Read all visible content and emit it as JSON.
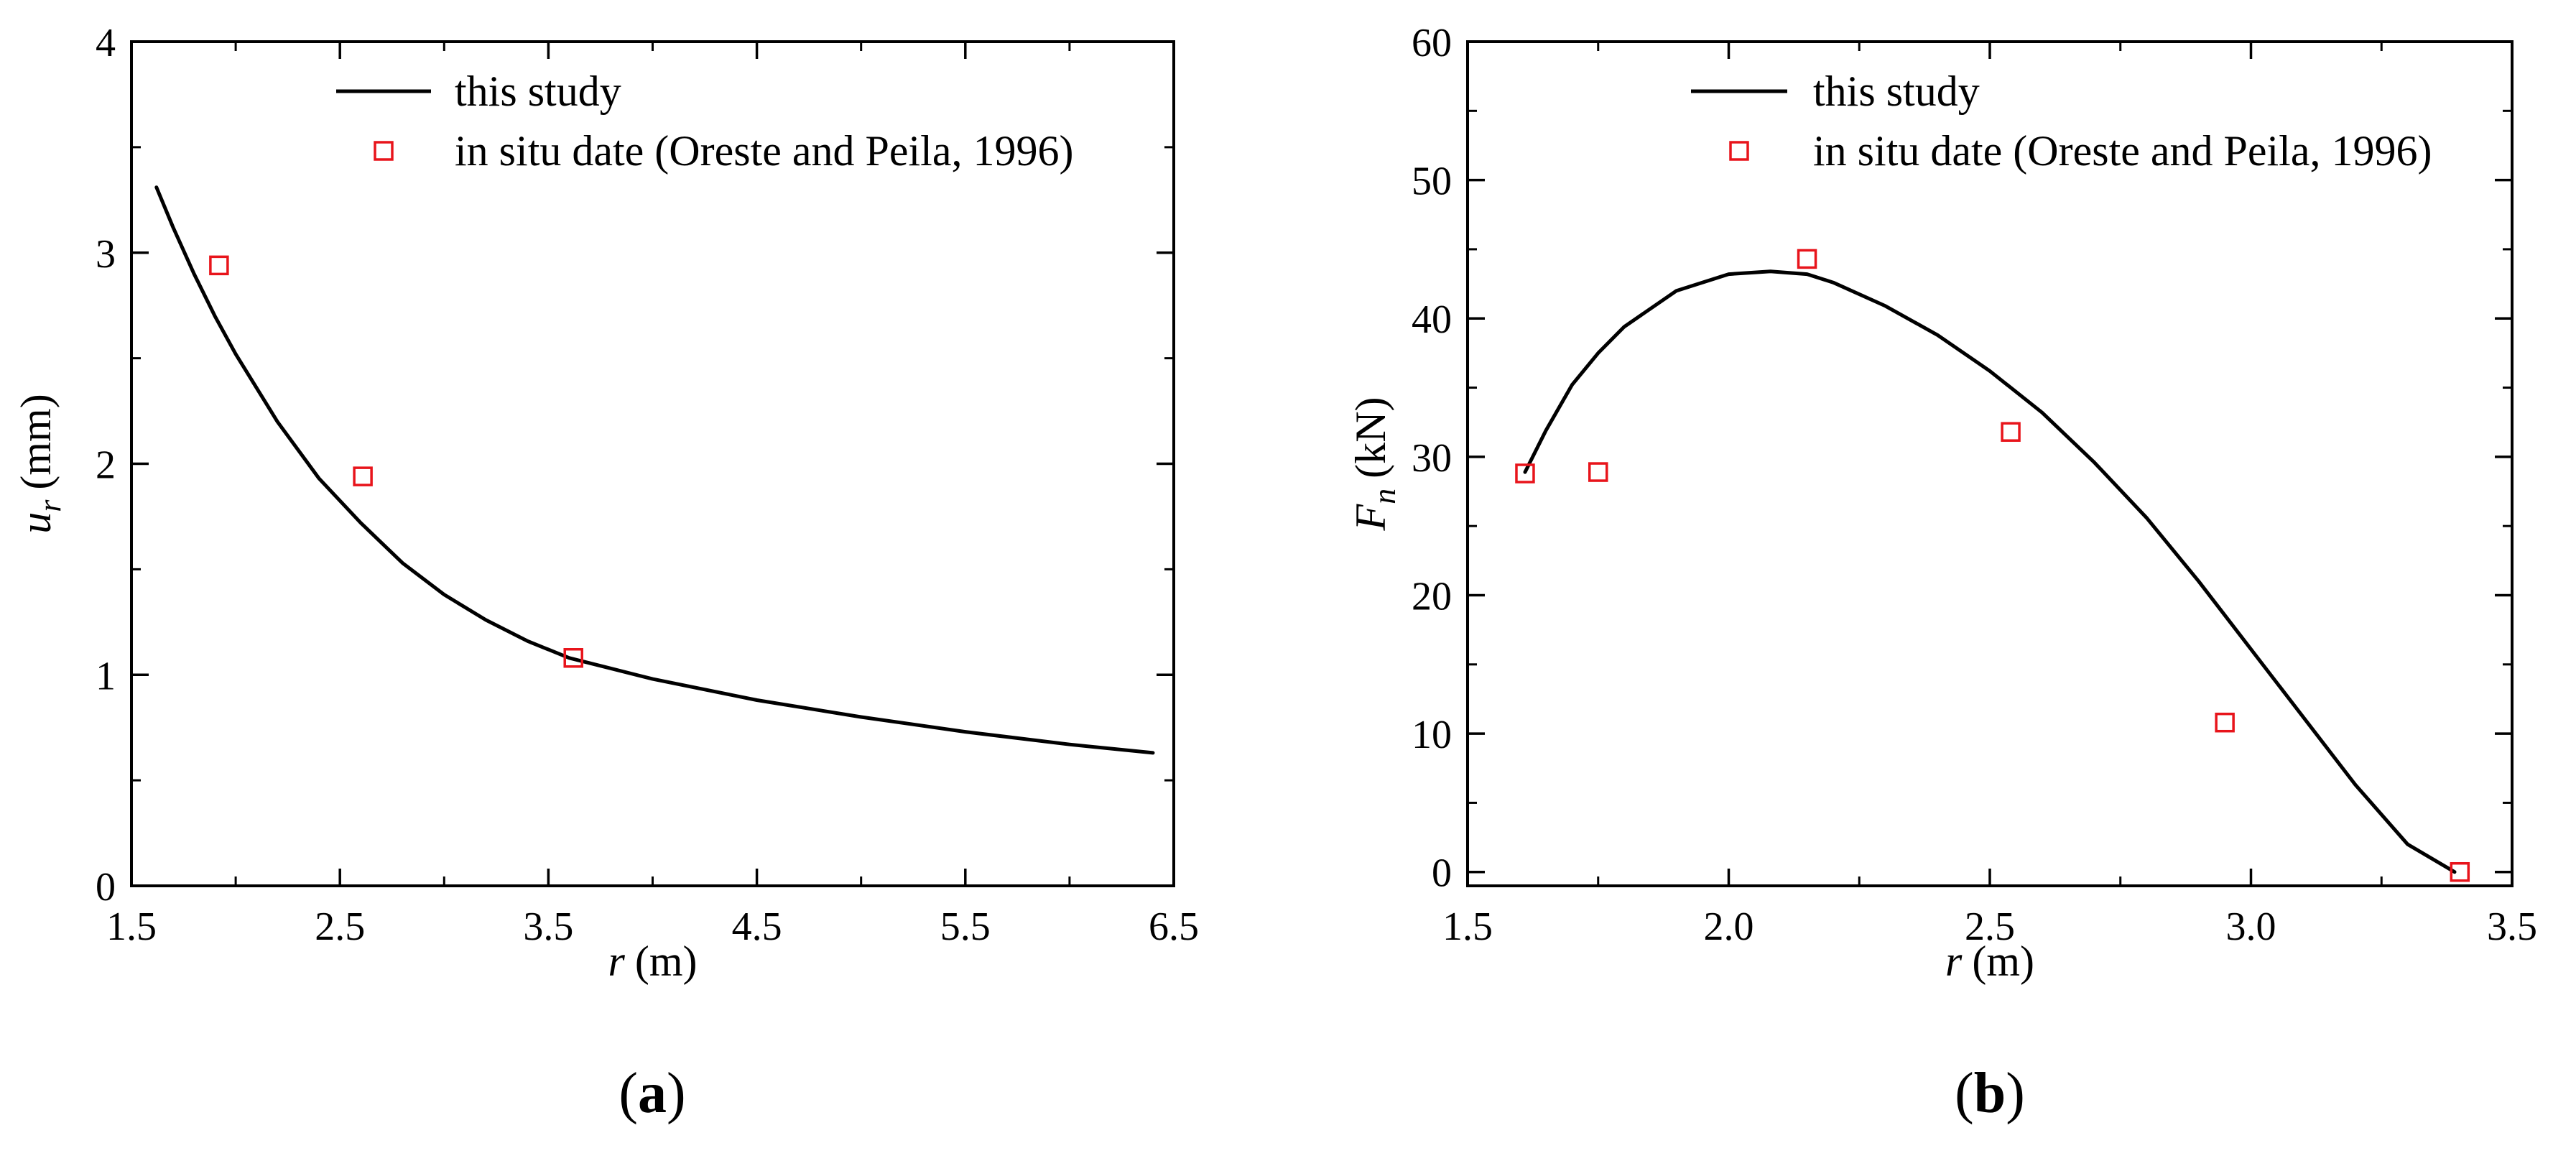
{
  "chart_data": [
    {
      "id": "a",
      "type": "line",
      "panel_label": "a",
      "xlabel_var": "r",
      "xlabel_unit": "(m)",
      "ylabel_var": "u",
      "ylabel_sub": "r",
      "ylabel_unit": "(mm)",
      "xlim": [
        1.5,
        6.5
      ],
      "ylim": [
        0,
        4
      ],
      "xticks": [
        1.5,
        2.5,
        3.5,
        4.5,
        5.5,
        6.5
      ],
      "xtick_labels": [
        "1.5",
        "2.5",
        "3.5",
        "4.5",
        "5.5",
        "6.5"
      ],
      "yticks": [
        0,
        1,
        2,
        3,
        4
      ],
      "ytick_labels": [
        "0",
        "1",
        "2",
        "3",
        "4"
      ],
      "legend": [
        "this study",
        "in situ date (Oreste and Peila, 1996)"
      ],
      "legend_position": "top-right",
      "series": [
        {
          "name": "this study",
          "style": "line",
          "color": "#000000",
          "x": [
            1.62,
            1.7,
            1.8,
            1.9,
            2.0,
            2.2,
            2.4,
            2.6,
            2.8,
            3.0,
            3.2,
            3.4,
            3.6,
            3.8,
            4.0,
            4.5,
            5.0,
            5.5,
            6.0,
            6.4
          ],
          "y": [
            3.31,
            3.12,
            2.9,
            2.7,
            2.52,
            2.2,
            1.93,
            1.72,
            1.53,
            1.38,
            1.26,
            1.16,
            1.08,
            1.03,
            0.98,
            0.88,
            0.8,
            0.73,
            0.67,
            0.63
          ]
        },
        {
          "name": "in situ date (Oreste and Peila, 1996)",
          "style": "marker",
          "color": "#e8141b",
          "x": [
            1.92,
            2.61,
            3.62
          ],
          "y": [
            2.94,
            1.94,
            1.08
          ]
        }
      ]
    },
    {
      "id": "b",
      "type": "line",
      "panel_label": "b",
      "xlabel_var": "r",
      "xlabel_unit": "(m)",
      "ylabel_var": "F",
      "ylabel_sub": "n",
      "ylabel_unit": "(kN)",
      "xlim": [
        1.5,
        3.5
      ],
      "ylim": [
        -1,
        60
      ],
      "xticks": [
        1.5,
        2.0,
        2.5,
        3.0,
        3.5
      ],
      "xtick_labels": [
        "1.5",
        "2.0",
        "2.5",
        "3.0",
        "3.5"
      ],
      "yticks": [
        0,
        10,
        20,
        30,
        40,
        50,
        60
      ],
      "ytick_labels": [
        "0",
        "10",
        "20",
        "30",
        "40",
        "50",
        "60"
      ],
      "legend": [
        "this study",
        "in situ date (Oreste and Peila, 1996)"
      ],
      "legend_position": "top-right",
      "series": [
        {
          "name": "this study",
          "style": "line",
          "color": "#000000",
          "x": [
            1.61,
            1.65,
            1.7,
            1.75,
            1.8,
            1.9,
            2.0,
            2.08,
            2.15,
            2.2,
            2.3,
            2.4,
            2.5,
            2.6,
            2.7,
            2.8,
            2.9,
            3.0,
            3.1,
            3.2,
            3.3,
            3.39
          ],
          "y": [
            28.9,
            31.9,
            35.2,
            37.5,
            39.4,
            42.0,
            43.2,
            43.4,
            43.2,
            42.6,
            40.9,
            38.8,
            36.2,
            33.2,
            29.6,
            25.6,
            21.0,
            16.1,
            11.2,
            6.3,
            2.0,
            0.0
          ]
        },
        {
          "name": "in situ date (Oreste and Peila, 1996)",
          "style": "marker",
          "color": "#e8141b",
          "x": [
            1.61,
            1.75,
            2.15,
            2.54,
            2.95,
            3.4
          ],
          "y": [
            28.8,
            28.9,
            44.3,
            31.8,
            10.8,
            0.0
          ]
        }
      ]
    }
  ]
}
